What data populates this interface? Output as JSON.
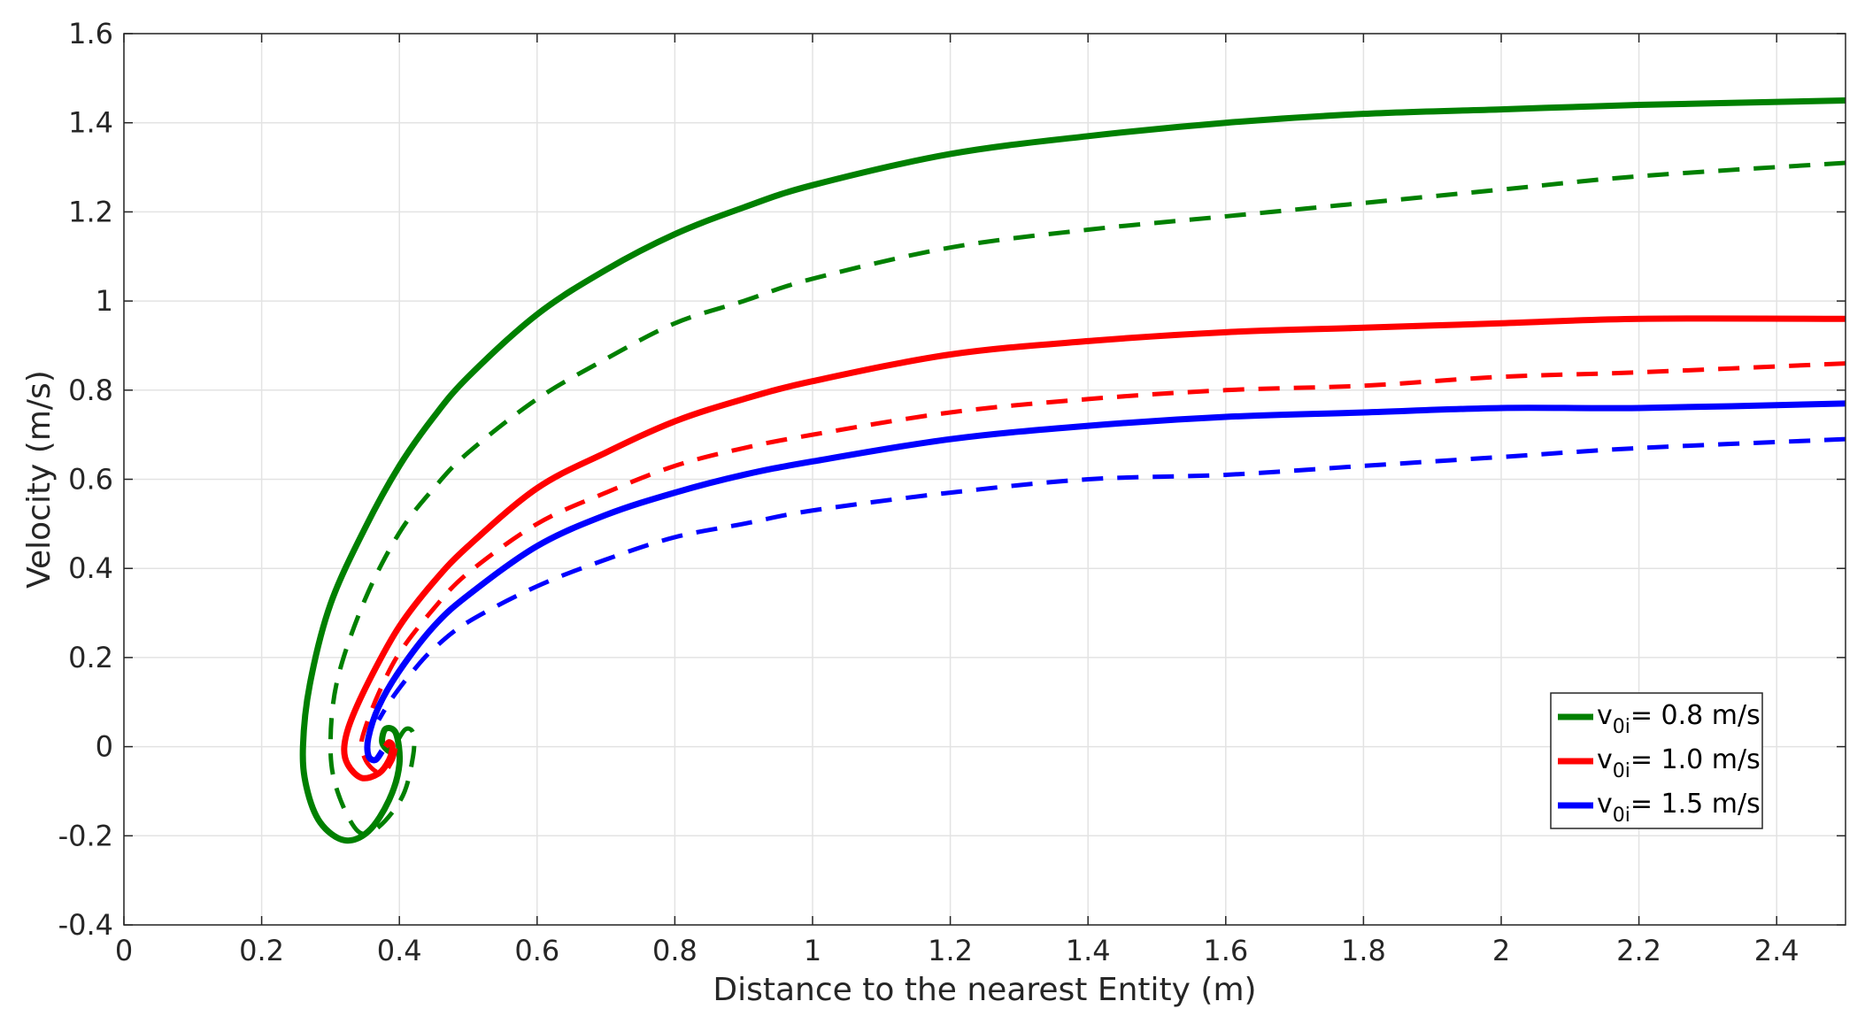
{
  "chart_data": {
    "type": "line",
    "title": "",
    "xlabel": "Distance to the nearest Entity (m)",
    "ylabel": "Velocity (m/s)",
    "xlim": [
      0,
      2.5
    ],
    "ylim": [
      -0.4,
      1.6
    ],
    "xticks": [
      0,
      0.2,
      0.4,
      0.6,
      0.8,
      1,
      1.2,
      1.4,
      1.6,
      1.8,
      2,
      2.2,
      2.4
    ],
    "xtick_labels": [
      "0",
      "0.2",
      "0.4",
      "0.6",
      "0.8",
      "1",
      "1.2",
      "1.4",
      "1.6",
      "1.8",
      "2",
      "2.2",
      "2.4"
    ],
    "yticks": [
      -0.4,
      -0.2,
      0,
      0.2,
      0.4,
      0.6,
      0.8,
      1,
      1.2,
      1.4,
      1.6
    ],
    "ytick_labels": [
      "-0.4",
      "-0.2",
      "0",
      "0.2",
      "0.4",
      "0.6",
      "0.8",
      "1",
      "1.2",
      "1.4",
      "1.6"
    ],
    "grid": true,
    "legend_position": "bottom-right",
    "legend": [
      {
        "prefix": "v",
        "subscript": "0i",
        "suffix": "= 0.8 m/s",
        "color": "#008000"
      },
      {
        "prefix": "v",
        "subscript": "0i",
        "suffix": "= 1.0 m/s",
        "color": "#ff0000"
      },
      {
        "prefix": "v",
        "subscript": "0i",
        "suffix": "= 1.5 m/s",
        "color": "#0000ff"
      }
    ],
    "series": [
      {
        "color": "#008000",
        "style": "solid",
        "x": [
          2.5,
          2.2,
          2.0,
          1.8,
          1.6,
          1.4,
          1.2,
          1.0,
          0.9,
          0.8,
          0.7,
          0.6,
          0.5,
          0.45,
          0.4,
          0.35,
          0.3,
          0.27,
          0.26,
          0.265,
          0.285,
          0.32,
          0.355,
          0.385,
          0.4,
          0.395,
          0.38,
          0.375,
          0.385,
          0.39
        ],
        "y": [
          1.45,
          1.44,
          1.43,
          1.42,
          1.4,
          1.37,
          1.33,
          1.26,
          1.21,
          1.15,
          1.07,
          0.97,
          0.83,
          0.74,
          0.63,
          0.49,
          0.32,
          0.14,
          0.0,
          -0.09,
          -0.17,
          -0.21,
          -0.19,
          -0.12,
          -0.04,
          0.03,
          0.04,
          0.01,
          -0.01,
          0.0
        ]
      },
      {
        "color": "#008000",
        "style": "dashed",
        "x": [
          2.5,
          2.2,
          2.0,
          1.8,
          1.6,
          1.4,
          1.2,
          1.0,
          0.9,
          0.8,
          0.7,
          0.6,
          0.5,
          0.45,
          0.4,
          0.35,
          0.31,
          0.3,
          0.31,
          0.34,
          0.37,
          0.405,
          0.42,
          0.42,
          0.41,
          0.4,
          0.395
        ],
        "y": [
          1.31,
          1.28,
          1.25,
          1.22,
          1.19,
          1.16,
          1.12,
          1.05,
          1.0,
          0.95,
          0.87,
          0.78,
          0.66,
          0.58,
          0.48,
          0.33,
          0.15,
          0.0,
          -0.1,
          -0.19,
          -0.18,
          -0.11,
          -0.02,
          0.03,
          0.04,
          0.02,
          0.0
        ]
      },
      {
        "color": "#ff0000",
        "style": "solid",
        "x": [
          2.5,
          2.2,
          2.0,
          1.8,
          1.6,
          1.4,
          1.2,
          1.0,
          0.9,
          0.8,
          0.7,
          0.6,
          0.5,
          0.45,
          0.4,
          0.36,
          0.33,
          0.32,
          0.325,
          0.345,
          0.37,
          0.385,
          0.39,
          0.385,
          0.38
        ],
        "y": [
          0.96,
          0.96,
          0.95,
          0.94,
          0.93,
          0.91,
          0.88,
          0.82,
          0.78,
          0.73,
          0.66,
          0.58,
          0.45,
          0.37,
          0.27,
          0.16,
          0.06,
          0.0,
          -0.04,
          -0.07,
          -0.06,
          -0.03,
          0.0,
          0.01,
          0.0
        ]
      },
      {
        "color": "#ff0000",
        "style": "dashed",
        "x": [
          2.5,
          2.2,
          2.0,
          1.8,
          1.6,
          1.4,
          1.2,
          1.0,
          0.9,
          0.8,
          0.7,
          0.6,
          0.5,
          0.45,
          0.4,
          0.37,
          0.35,
          0.345,
          0.355,
          0.375,
          0.39,
          0.395
        ],
        "y": [
          0.86,
          0.84,
          0.83,
          0.81,
          0.8,
          0.78,
          0.75,
          0.7,
          0.67,
          0.63,
          0.57,
          0.5,
          0.39,
          0.31,
          0.21,
          0.12,
          0.04,
          0.0,
          -0.04,
          -0.06,
          -0.03,
          0.0
        ]
      },
      {
        "color": "#0000ff",
        "style": "solid",
        "x": [
          2.5,
          2.2,
          2.0,
          1.8,
          1.6,
          1.4,
          1.2,
          1.0,
          0.9,
          0.8,
          0.7,
          0.6,
          0.5,
          0.45,
          0.4,
          0.37,
          0.355,
          0.355,
          0.365,
          0.375
        ],
        "y": [
          0.77,
          0.76,
          0.76,
          0.75,
          0.74,
          0.72,
          0.69,
          0.64,
          0.61,
          0.57,
          0.52,
          0.45,
          0.34,
          0.27,
          0.17,
          0.09,
          0.02,
          -0.02,
          -0.03,
          -0.01
        ]
      },
      {
        "color": "#0000ff",
        "style": "dashed",
        "x": [
          2.5,
          2.2,
          2.0,
          1.8,
          1.6,
          1.4,
          1.2,
          1.0,
          0.9,
          0.8,
          0.7,
          0.6,
          0.5,
          0.45,
          0.42,
          0.39,
          0.37
        ],
        "y": [
          0.69,
          0.67,
          0.65,
          0.63,
          0.61,
          0.6,
          0.57,
          0.53,
          0.5,
          0.47,
          0.42,
          0.36,
          0.28,
          0.22,
          0.17,
          0.11,
          0.06
        ]
      }
    ]
  }
}
